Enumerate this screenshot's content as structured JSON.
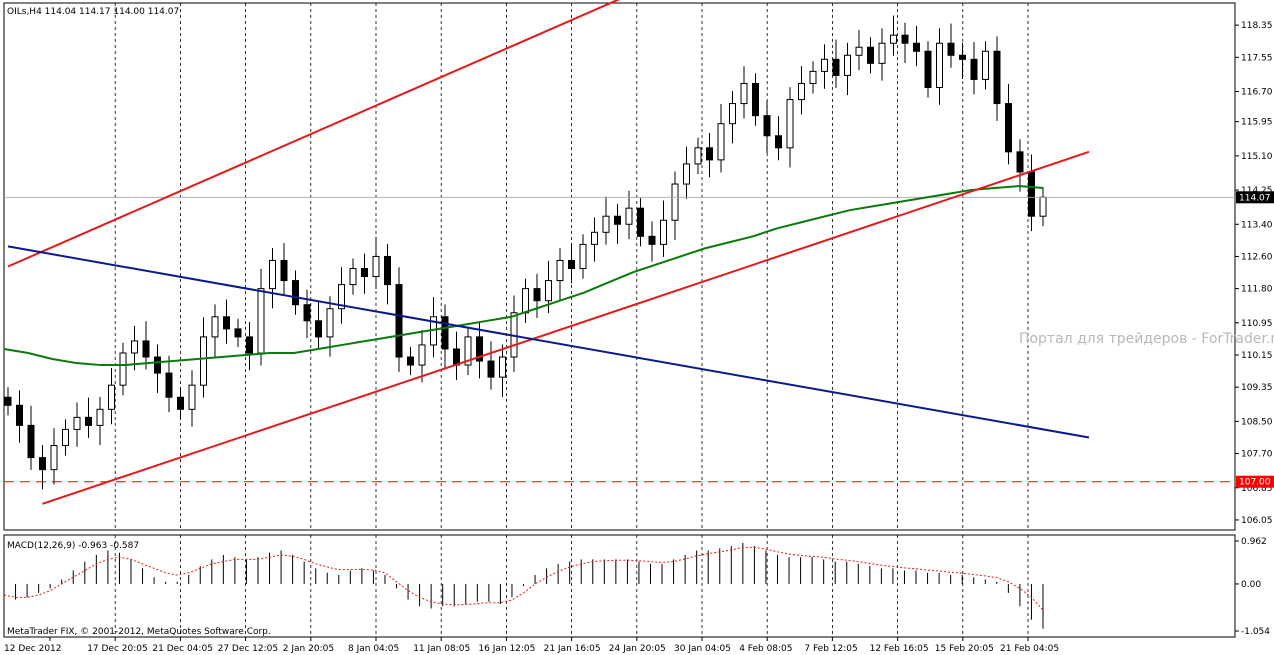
{
  "chart_data": {
    "type": "candlestick",
    "symbol_header": "OILs,H4  114.04 114.17 114.00 114.07",
    "watermark": "Портал для трейдеров - ForTrader.ru",
    "copyright": "MetaTrader FIX, © 2001-2012, MetaQuotes Software Corp.",
    "price_axis": {
      "min": 105.8,
      "max": 118.9,
      "ticks": [
        "118.35",
        "117.55",
        "116.70",
        "115.95",
        "115.10",
        "114.25",
        "113.40",
        "112.60",
        "111.80",
        "110.95",
        "110.15",
        "109.35",
        "108.50",
        "107.70",
        "106.85",
        "106.05"
      ]
    },
    "current_price": "114.07",
    "level_line": {
      "value": 107.0,
      "label": "107.00",
      "color": "#ff0000"
    },
    "time_labels": [
      "12 Dec 2012",
      "17 Dec 20:05",
      "21 Dec 04:05",
      "27 Dec 12:05",
      "2 Jan 20:05",
      "8 Jan 04:05",
      "11 Jan 08:05",
      "16 Jan 12:05",
      "21 Jan 16:05",
      "24 Jan 20:05",
      "30 Jan 04:05",
      "4 Feb 08:05",
      "7 Feb 12:05",
      "12 Feb 16:05",
      "15 Feb 20:05",
      "21 Feb 04:05"
    ],
    "close_series": [
      108.9,
      108.4,
      107.6,
      107.3,
      107.9,
      108.3,
      108.6,
      108.4,
      108.8,
      109.4,
      110.2,
      110.5,
      110.1,
      109.7,
      109.1,
      108.8,
      109.4,
      110.6,
      111.1,
      110.8,
      110.6,
      110.2,
      111.8,
      112.5,
      112.0,
      111.4,
      111.0,
      110.6,
      111.3,
      111.9,
      112.3,
      112.1,
      112.6,
      111.9,
      110.1,
      109.9,
      110.4,
      111.1,
      110.3,
      109.9,
      110.6,
      110.0,
      109.6,
      110.1,
      111.2,
      111.8,
      111.5,
      112.0,
      112.5,
      112.3,
      112.9,
      113.2,
      113.6,
      113.4,
      113.8,
      113.1,
      112.9,
      113.5,
      114.4,
      114.9,
      115.3,
      115.0,
      115.9,
      116.4,
      116.9,
      116.1,
      115.6,
      115.3,
      116.5,
      116.9,
      117.2,
      117.5,
      117.1,
      117.6,
      117.8,
      117.4,
      117.9,
      118.1,
      117.9,
      117.7,
      116.8,
      117.9,
      117.6,
      117.5,
      117.0,
      117.7,
      116.4,
      115.2,
      114.7,
      113.6,
      114.07
    ],
    "channel_upper": {
      "from": [
        0,
        112.35
      ],
      "to": [
        68,
        120.85
      ],
      "color": "#e41a1a"
    },
    "channel_lower": {
      "from": [
        3,
        106.45
      ],
      "to": [
        94,
        115.2
      ],
      "color": "#e41a1a"
    },
    "trend_line": {
      "from": [
        0,
        112.85
      ],
      "to": [
        94,
        108.1
      ],
      "color": "#0a1a8c"
    },
    "moving_average": {
      "color": "#0a7a0a",
      "values": [
        110.3,
        110.2,
        110.05,
        109.95,
        109.9,
        109.9,
        109.95,
        110.0,
        110.05,
        110.1,
        110.15,
        110.2,
        110.2,
        110.3,
        110.4,
        110.5,
        110.6,
        110.7,
        110.8,
        110.9,
        111.0,
        111.1,
        111.3,
        111.5,
        111.7,
        111.95,
        112.2,
        112.4,
        112.6,
        112.8,
        112.95,
        113.1,
        113.3,
        113.45,
        113.6,
        113.75,
        113.85,
        113.95,
        114.05,
        114.15,
        114.25,
        114.3,
        114.35,
        114.3
      ]
    },
    "macd": {
      "label": "MACD(12,26,9) -0.963 -0.587",
      "ticks": [
        "0.962",
        "0.00",
        "-1.054"
      ],
      "min": -1.054,
      "max": 0.962,
      "histogram": [
        -0.3,
        -0.35,
        -0.3,
        -0.2,
        -0.1,
        0.1,
        0.3,
        0.5,
        0.65,
        0.75,
        0.7,
        0.55,
        0.35,
        0.15,
        0.05,
        0.05,
        0.2,
        0.4,
        0.55,
        0.65,
        0.6,
        0.55,
        0.6,
        0.7,
        0.75,
        0.65,
        0.5,
        0.35,
        0.25,
        0.2,
        0.3,
        0.35,
        0.3,
        0.2,
        -0.1,
        -0.35,
        -0.5,
        -0.55,
        -0.5,
        -0.5,
        -0.45,
        -0.4,
        -0.4,
        -0.45,
        -0.3,
        -0.05,
        0.2,
        0.35,
        0.45,
        0.5,
        0.55,
        0.55,
        0.55,
        0.55,
        0.55,
        0.5,
        0.45,
        0.45,
        0.55,
        0.65,
        0.75,
        0.75,
        0.8,
        0.85,
        0.92,
        0.85,
        0.75,
        0.65,
        0.6,
        0.6,
        0.6,
        0.55,
        0.5,
        0.5,
        0.45,
        0.4,
        0.35,
        0.35,
        0.3,
        0.3,
        0.25,
        0.25,
        0.2,
        0.2,
        0.15,
        0.1,
        0.05,
        -0.2,
        -0.5,
        -0.8,
        -1.0
      ],
      "signal": [
        -0.25,
        -0.3,
        -0.3,
        -0.25,
        -0.15,
        0.0,
        0.15,
        0.3,
        0.45,
        0.55,
        0.6,
        0.55,
        0.45,
        0.35,
        0.25,
        0.2,
        0.25,
        0.35,
        0.45,
        0.5,
        0.55,
        0.55,
        0.55,
        0.6,
        0.65,
        0.62,
        0.55,
        0.45,
        0.38,
        0.32,
        0.32,
        0.33,
        0.31,
        0.25,
        0.05,
        -0.15,
        -0.3,
        -0.4,
        -0.45,
        -0.47,
        -0.46,
        -0.44,
        -0.42,
        -0.42,
        -0.36,
        -0.2,
        0.0,
        0.15,
        0.28,
        0.38,
        0.45,
        0.5,
        0.52,
        0.53,
        0.53,
        0.52,
        0.5,
        0.48,
        0.5,
        0.56,
        0.63,
        0.68,
        0.72,
        0.76,
        0.82,
        0.82,
        0.78,
        0.72,
        0.67,
        0.64,
        0.62,
        0.6,
        0.56,
        0.53,
        0.5,
        0.46,
        0.42,
        0.39,
        0.36,
        0.34,
        0.31,
        0.29,
        0.26,
        0.24,
        0.21,
        0.18,
        0.14,
        0.05,
        -0.1,
        -0.3,
        -0.587
      ]
    }
  }
}
